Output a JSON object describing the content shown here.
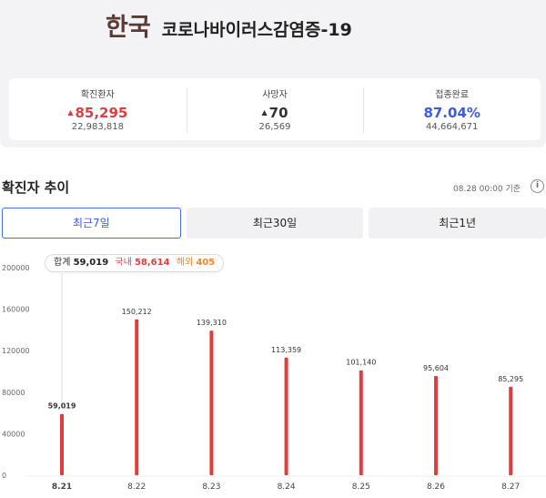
{
  "header": {
    "country": "한국",
    "disease": "코로나바이러스감염증-19"
  },
  "stats": [
    {
      "label": "확진환자",
      "value": "85,295",
      "total": "22,983,818",
      "arrow": "▲",
      "color": "#e03e3e"
    },
    {
      "label": "사망자",
      "value": "70",
      "total": "26,569",
      "arrow": "▲",
      "color": "#333333"
    },
    {
      "label": "접종완료",
      "value": "87.04%",
      "total": "44,664,671",
      "arrow": "",
      "color": "#3d5bdc"
    }
  ],
  "trend": {
    "title": "확진자 추이",
    "as_of": "08.28 00:00 기준",
    "info_icon": "i"
  },
  "tabs": [
    {
      "label": "최근7일",
      "active": true
    },
    {
      "label": "최근30일",
      "active": false
    },
    {
      "label": "최근1년",
      "active": false
    }
  ],
  "tooltip": {
    "total_label": "합계",
    "total": "59,019",
    "domestic_label": "국내",
    "domestic": "58,614",
    "overseas_label": "해외",
    "overseas": "405"
  },
  "chart_data": {
    "type": "bar",
    "categories": [
      "8.21",
      "8.22",
      "8.23",
      "8.24",
      "8.25",
      "8.26",
      "8.27"
    ],
    "values": [
      59019,
      150212,
      139310,
      113359,
      101140,
      95604,
      85295
    ],
    "value_labels": [
      "59,019",
      "150,212",
      "139,310",
      "113,359",
      "101,140",
      "95,604",
      "85,295"
    ],
    "yticks": [
      0,
      40000,
      80000,
      120000,
      160000,
      200000
    ],
    "ylim": [
      0,
      200000
    ],
    "selected_index": 0,
    "bar_color": "#e03e3e",
    "grid": false
  }
}
